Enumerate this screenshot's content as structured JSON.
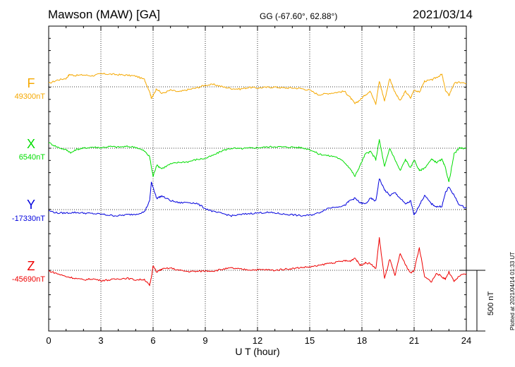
{
  "header": {
    "station": "Mawson (MAW)  [GA]",
    "coords": "GG (-67.60°,  62.88°)",
    "date": "2021/03/14"
  },
  "xaxis": {
    "label": "U T (hour)",
    "ticks": [
      "0",
      "3",
      "6",
      "9",
      "12",
      "15",
      "18",
      "21",
      "24"
    ]
  },
  "plotted_note": "Plotted at 2021/04/14 01:33 UT",
  "scale_bar_label": "500 nT",
  "components": [
    {
      "name": "F",
      "baseline": "49300nT",
      "color": "#f5a800"
    },
    {
      "name": "X",
      "baseline": "6540nT",
      "color": "#00dd00"
    },
    {
      "name": "Y",
      "baseline": "-17330nT",
      "color": "#0000dd"
    },
    {
      "name": "Z",
      "baseline": "-45690nT",
      "color": "#ee0000"
    }
  ],
  "chart_data": {
    "type": "line",
    "title": "Mawson (MAW)  [GA]",
    "xlabel": "U T (hour)",
    "xlim": [
      0,
      24
    ],
    "scale_nT": 500,
    "series": [
      {
        "name": "F",
        "baseline_nT": 49300,
        "color": "#f5a800",
        "points": [
          [
            0,
            60
          ],
          [
            0.5,
            120
          ],
          [
            1,
            150
          ],
          [
            1.2,
            220
          ],
          [
            1.5,
            200
          ],
          [
            2,
            210
          ],
          [
            2.5,
            195
          ],
          [
            3,
            230
          ],
          [
            3.5,
            225
          ],
          [
            4,
            215
          ],
          [
            4.5,
            205
          ],
          [
            5,
            190
          ],
          [
            5.5,
            130
          ],
          [
            5.8,
            -80
          ],
          [
            5.9,
            -200
          ],
          [
            6,
            -160
          ],
          [
            6.2,
            -30
          ],
          [
            6.5,
            -120
          ],
          [
            7,
            -60
          ],
          [
            7.5,
            -90
          ],
          [
            8,
            -50
          ],
          [
            8.5,
            -20
          ],
          [
            9,
            30
          ],
          [
            9.5,
            40
          ],
          [
            10,
            0
          ],
          [
            10.5,
            -30
          ],
          [
            11,
            -40
          ],
          [
            11.5,
            -10
          ],
          [
            12,
            -20
          ],
          [
            12.5,
            -10
          ],
          [
            13,
            -5
          ],
          [
            13.5,
            -20
          ],
          [
            14,
            -20
          ],
          [
            14.5,
            -30
          ],
          [
            15,
            -60
          ],
          [
            15.5,
            -140
          ],
          [
            16,
            -120
          ],
          [
            16.5,
            -100
          ],
          [
            17,
            -80
          ],
          [
            17.3,
            -180
          ],
          [
            17.6,
            -300
          ],
          [
            17.9,
            -230
          ],
          [
            18.2,
            -140
          ],
          [
            18.5,
            -80
          ],
          [
            18.8,
            -300
          ],
          [
            19,
            100
          ],
          [
            19.3,
            -250
          ],
          [
            19.6,
            150
          ],
          [
            19.9,
            -100
          ],
          [
            20.2,
            -250
          ],
          [
            20.5,
            -80
          ],
          [
            20.8,
            -200
          ],
          [
            21,
            -50
          ],
          [
            21.3,
            -100
          ],
          [
            21.6,
            100
          ],
          [
            22,
            120
          ],
          [
            22.3,
            170
          ],
          [
            22.6,
            220
          ],
          [
            22.8,
            -60
          ],
          [
            23,
            -150
          ],
          [
            23.3,
            60
          ],
          [
            23.6,
            80
          ],
          [
            24,
            60
          ]
        ]
      },
      {
        "name": "X",
        "baseline_nT": 6540,
        "color": "#00dd00",
        "points": [
          [
            0,
            100
          ],
          [
            0.5,
            20
          ],
          [
            1,
            -30
          ],
          [
            1.3,
            -80
          ],
          [
            1.6,
            -20
          ],
          [
            2,
            0
          ],
          [
            2.5,
            20
          ],
          [
            3,
            10
          ],
          [
            3.5,
            30
          ],
          [
            4,
            20
          ],
          [
            4.5,
            30
          ],
          [
            5,
            20
          ],
          [
            5.5,
            -50
          ],
          [
            5.8,
            -150
          ],
          [
            6,
            -500
          ],
          [
            6.2,
            -300
          ],
          [
            6.5,
            -360
          ],
          [
            7,
            -280
          ],
          [
            7.5,
            -250
          ],
          [
            8,
            -240
          ],
          [
            8.5,
            -200
          ],
          [
            9,
            -180
          ],
          [
            9.5,
            -120
          ],
          [
            10,
            -40
          ],
          [
            10.5,
            0
          ],
          [
            11,
            -10
          ],
          [
            11.5,
            0
          ],
          [
            12,
            10
          ],
          [
            12.5,
            20
          ],
          [
            13,
            30
          ],
          [
            13.5,
            20
          ],
          [
            14,
            20
          ],
          [
            14.5,
            10
          ],
          [
            15,
            -20
          ],
          [
            15.5,
            -100
          ],
          [
            16,
            -130
          ],
          [
            16.5,
            -150
          ],
          [
            17,
            -250
          ],
          [
            17.3,
            -350
          ],
          [
            17.6,
            -500
          ],
          [
            17.9,
            -300
          ],
          [
            18.2,
            -100
          ],
          [
            18.5,
            -60
          ],
          [
            18.8,
            -200
          ],
          [
            19,
            150
          ],
          [
            19.3,
            -330
          ],
          [
            19.6,
            0
          ],
          [
            19.9,
            -200
          ],
          [
            20.2,
            -400
          ],
          [
            20.5,
            -200
          ],
          [
            20.8,
            -350
          ],
          [
            21,
            -200
          ],
          [
            21.3,
            -400
          ],
          [
            21.6,
            -350
          ],
          [
            22,
            -200
          ],
          [
            22.3,
            -250
          ],
          [
            22.6,
            -200
          ],
          [
            22.8,
            -350
          ],
          [
            23,
            -600
          ],
          [
            23.3,
            -100
          ],
          [
            23.6,
            0
          ],
          [
            24,
            0
          ]
        ]
      },
      {
        "name": "Y",
        "baseline_nT": -17330,
        "color": "#0000dd",
        "points": [
          [
            0,
            -20
          ],
          [
            0.5,
            -60
          ],
          [
            1,
            -60
          ],
          [
            1.5,
            -50
          ],
          [
            2,
            -60
          ],
          [
            2.5,
            -70
          ],
          [
            3,
            -80
          ],
          [
            3.5,
            -100
          ],
          [
            4,
            -110
          ],
          [
            4.5,
            -90
          ],
          [
            5,
            -80
          ],
          [
            5.5,
            -40
          ],
          [
            5.8,
            150
          ],
          [
            5.9,
            480
          ],
          [
            6,
            400
          ],
          [
            6.2,
            200
          ],
          [
            6.5,
            240
          ],
          [
            7,
            160
          ],
          [
            7.5,
            120
          ],
          [
            8,
            130
          ],
          [
            8.5,
            110
          ],
          [
            9,
            20
          ],
          [
            9.5,
            -40
          ],
          [
            10,
            -70
          ],
          [
            10.5,
            -110
          ],
          [
            11,
            -90
          ],
          [
            11.5,
            -70
          ],
          [
            12,
            -60
          ],
          [
            12.5,
            -50
          ],
          [
            13,
            -60
          ],
          [
            13.5,
            -80
          ],
          [
            14,
            -90
          ],
          [
            14.5,
            -110
          ],
          [
            15,
            -100
          ],
          [
            15.5,
            -60
          ],
          [
            16,
            20
          ],
          [
            16.5,
            50
          ],
          [
            17,
            70
          ],
          [
            17.3,
            160
          ],
          [
            17.6,
            200
          ],
          [
            17.9,
            120
          ],
          [
            18.2,
            100
          ],
          [
            18.5,
            200
          ],
          [
            18.8,
            150
          ],
          [
            19,
            550
          ],
          [
            19.3,
            350
          ],
          [
            19.6,
            250
          ],
          [
            19.9,
            300
          ],
          [
            20.2,
            200
          ],
          [
            20.5,
            100
          ],
          [
            20.8,
            150
          ],
          [
            21,
            -100
          ],
          [
            21.3,
            80
          ],
          [
            21.6,
            250
          ],
          [
            22,
            100
          ],
          [
            22.3,
            50
          ],
          [
            22.6,
            60
          ],
          [
            22.8,
            300
          ],
          [
            23,
            400
          ],
          [
            23.3,
            250
          ],
          [
            23.6,
            80
          ],
          [
            24,
            30
          ]
        ]
      },
      {
        "name": "Z",
        "baseline_nT": -45690,
        "color": "#ee0000",
        "points": [
          [
            0,
            -10
          ],
          [
            0.5,
            -60
          ],
          [
            1,
            -110
          ],
          [
            1.5,
            -140
          ],
          [
            2,
            -170
          ],
          [
            2.5,
            -150
          ],
          [
            3,
            -180
          ],
          [
            3.5,
            -170
          ],
          [
            4,
            -150
          ],
          [
            4.5,
            -140
          ],
          [
            5,
            -170
          ],
          [
            5.5,
            -160
          ],
          [
            5.8,
            -270
          ],
          [
            5.9,
            -120
          ],
          [
            6,
            80
          ],
          [
            6.2,
            -30
          ],
          [
            6.5,
            20
          ],
          [
            7,
            40
          ],
          [
            7.5,
            0
          ],
          [
            8,
            -20
          ],
          [
            8.5,
            -20
          ],
          [
            9,
            -10
          ],
          [
            9.5,
            -10
          ],
          [
            10,
            20
          ],
          [
            10.5,
            40
          ],
          [
            11,
            20
          ],
          [
            11.5,
            10
          ],
          [
            12,
            10
          ],
          [
            12.5,
            10
          ],
          [
            13,
            0
          ],
          [
            13.5,
            20
          ],
          [
            14,
            30
          ],
          [
            14.5,
            50
          ],
          [
            15,
            60
          ],
          [
            15.5,
            80
          ],
          [
            16,
            120
          ],
          [
            16.5,
            140
          ],
          [
            17,
            170
          ],
          [
            17.3,
            160
          ],
          [
            17.6,
            220
          ],
          [
            17.9,
            90
          ],
          [
            18.2,
            130
          ],
          [
            18.5,
            120
          ],
          [
            18.8,
            20
          ],
          [
            19,
            570
          ],
          [
            19.3,
            -150
          ],
          [
            19.6,
            200
          ],
          [
            19.9,
            -100
          ],
          [
            20.2,
            300
          ],
          [
            20.5,
            100
          ],
          [
            20.8,
            -50
          ],
          [
            21,
            0
          ],
          [
            21.3,
            400
          ],
          [
            21.6,
            -120
          ],
          [
            22,
            -200
          ],
          [
            22.3,
            -50
          ],
          [
            22.6,
            -120
          ],
          [
            22.8,
            -150
          ],
          [
            23,
            -30
          ],
          [
            23.3,
            -200
          ],
          [
            23.6,
            -100
          ],
          [
            24,
            -60
          ]
        ]
      }
    ]
  }
}
